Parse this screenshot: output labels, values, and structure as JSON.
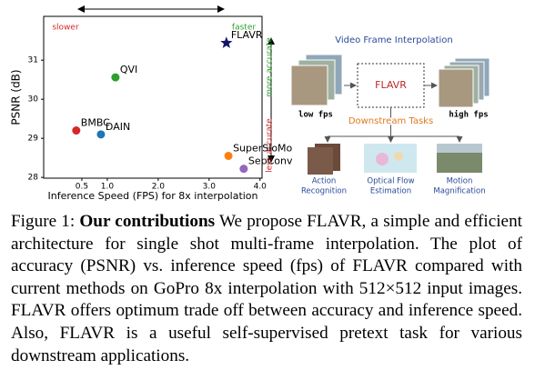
{
  "chart_data": {
    "type": "scatter",
    "ylabel": "PSNR (dB)",
    "xlabel": "Inference Speed (FPS) for 8x interpolation",
    "xlim": [
      -0.25,
      4.04
    ],
    "xticks": [
      0.5,
      1.0,
      2.0,
      3.0,
      4.0
    ],
    "ylim": [
      27.98,
      32.12
    ],
    "yticks": [
      28,
      29,
      30,
      31
    ],
    "annotations": {
      "slower": "slower",
      "faster": "faster",
      "more_accurate": "more accurate",
      "less_accurate": "less accurate"
    },
    "series": [
      {
        "name": "FLAVR",
        "color": "#14146e",
        "marker": "star",
        "x": [
          3.34
        ],
        "values": [
          31.44
        ]
      },
      {
        "name": "QVI",
        "color": "#2ca02c",
        "marker": "circle",
        "x": [
          1.16
        ],
        "values": [
          30.56
        ]
      },
      {
        "name": "BMBC",
        "color": "#d62728",
        "marker": "circle",
        "x": [
          0.39
        ],
        "values": [
          29.2
        ]
      },
      {
        "name": "DAIN",
        "color": "#1f77b4",
        "marker": "circle",
        "x": [
          0.875
        ],
        "values": [
          29.1
        ]
      },
      {
        "name": "SuperSloMo",
        "color": "#ff7f0e",
        "marker": "circle",
        "x": [
          3.38
        ],
        "values": [
          28.55
        ]
      },
      {
        "name": "SepConv",
        "color": "#9467bd",
        "marker": "circle",
        "x": [
          3.68
        ],
        "values": [
          28.22
        ]
      }
    ]
  },
  "diagram": {
    "title": "Video Frame Interpolation",
    "model": "FLAVR",
    "input": "low fps",
    "output": "high fps",
    "downstream": "Downstream Tasks",
    "tasks": [
      {
        "lines": [
          "Action",
          "Recognition"
        ]
      },
      {
        "lines": [
          "Optical Flow",
          "Estimation"
        ]
      },
      {
        "lines": [
          "Motion",
          "Magnification"
        ]
      }
    ]
  },
  "caption": {
    "label": "Figure 1:",
    "heading": "Our contributions",
    "text": "We propose FLAVR, a simple and efficient architecture for single shot multi-frame interpolation. The plot of accuracy (PSNR) vs. inference speed (fps) of FLAVR compared with current methods on GoPro 8x interpolation with 512×512 input images. FLAVR offers optimum trade off between accuracy and inference speed. Also, FLAVR is a useful self-supervised pretext task for various downstream applications."
  }
}
